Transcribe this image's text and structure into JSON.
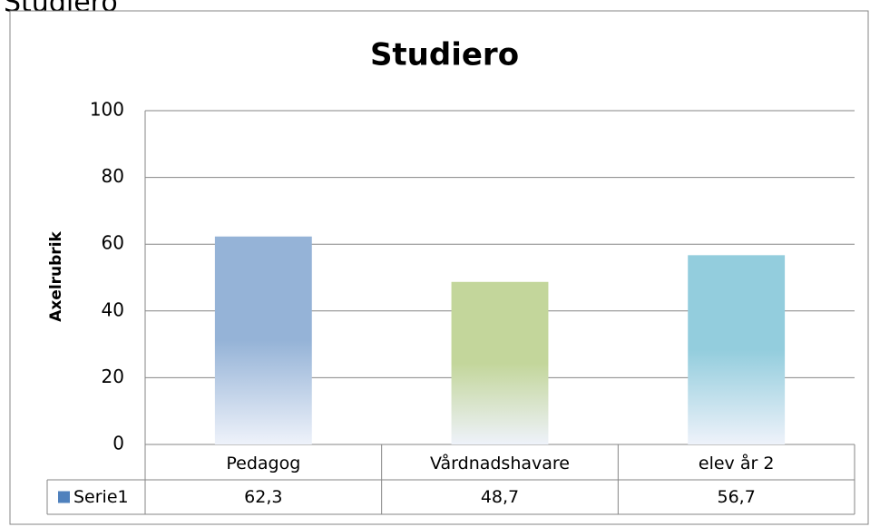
{
  "heading": "Studiero",
  "chart_data": {
    "type": "bar",
    "title": "Studiero",
    "y_label": "Axelrubrik",
    "categories": [
      "Pedagog",
      "Vårdnadshavare",
      "elev år 2"
    ],
    "series": [
      {
        "name": "Serie1",
        "color": "#4f81bd",
        "values": [
          62.3,
          48.7,
          56.7
        ],
        "value_labels": [
          "62,3",
          "48,7",
          "56,7"
        ],
        "bar_colors": [
          "#95b3d7",
          "#c3d69b",
          "#93cddd"
        ]
      }
    ],
    "ylim": [
      0,
      100
    ],
    "yticks": [
      0,
      20,
      40,
      60,
      80,
      100
    ],
    "grid": true,
    "data_table": true
  }
}
